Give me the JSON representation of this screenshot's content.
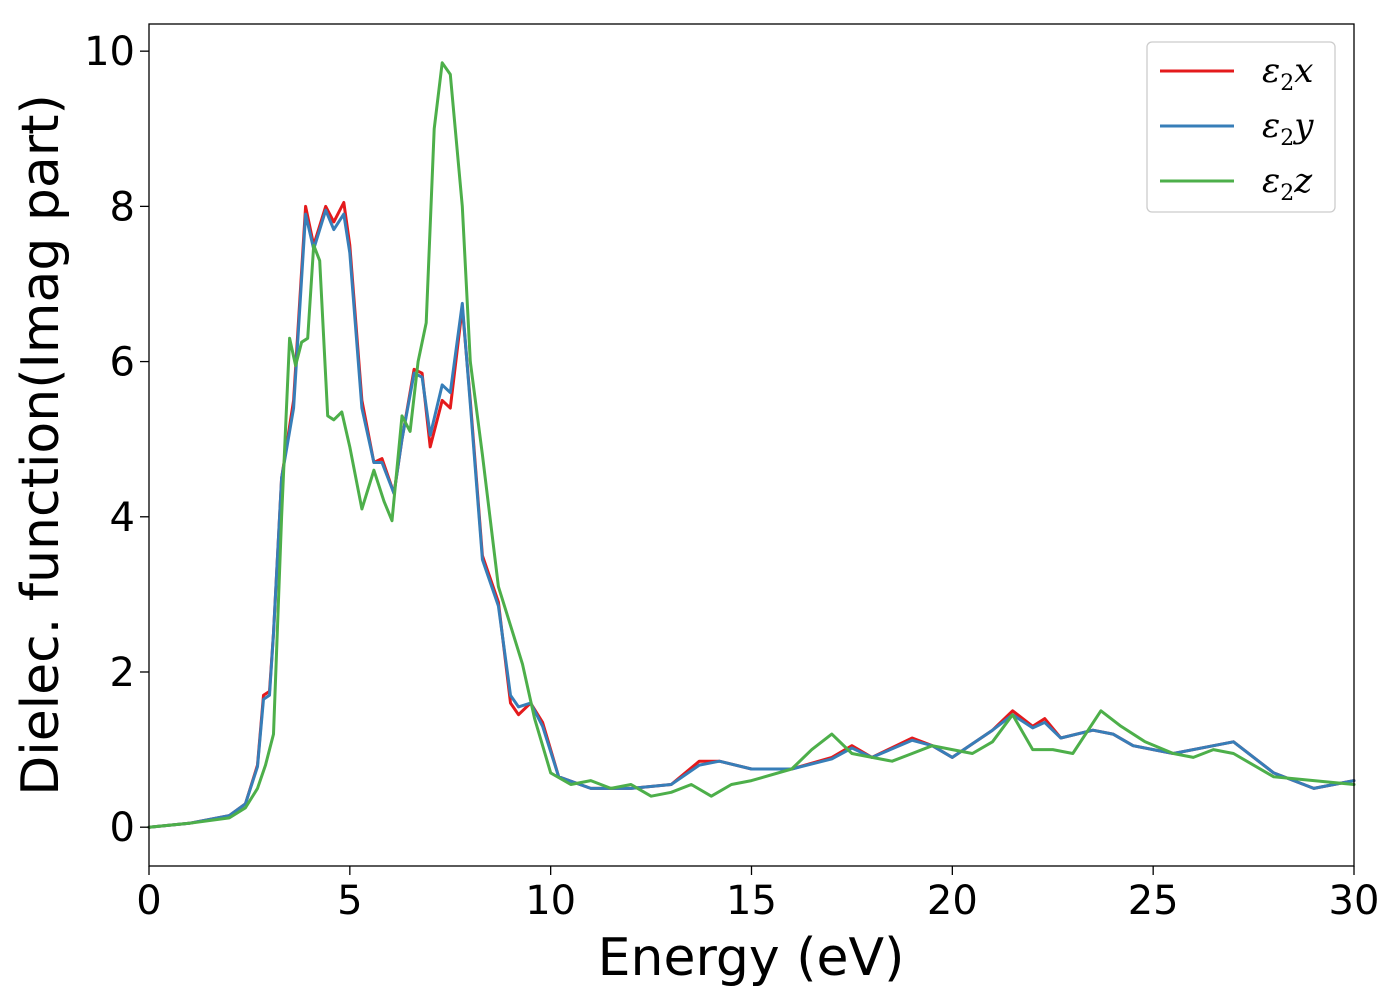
{
  "chart_data": {
    "type": "line",
    "xlabel": "Energy (eV)",
    "ylabel": "Dielec. function(Imag part)",
    "xlim": [
      0,
      30
    ],
    "ylim": [
      -0.5,
      10.35
    ],
    "xticks": [
      0,
      5,
      10,
      15,
      20,
      25,
      30
    ],
    "yticks": [
      0,
      2,
      4,
      6,
      8,
      10
    ],
    "grid": false,
    "legend_position": "top-right",
    "series": [
      {
        "name": "ε2x",
        "legend_base": "ε",
        "legend_sub": "2",
        "legend_var": "x",
        "color": "#e41a1c",
        "x": [
          0,
          1,
          2,
          2.4,
          2.7,
          2.85,
          3.0,
          3.1,
          3.3,
          3.6,
          3.9,
          4.1,
          4.4,
          4.6,
          4.85,
          5.0,
          5.3,
          5.6,
          5.8,
          6.1,
          6.3,
          6.6,
          6.8,
          7.0,
          7.3,
          7.5,
          7.8,
          8.0,
          8.3,
          8.7,
          9.0,
          9.2,
          9.5,
          9.8,
          10.2,
          11,
          12,
          13,
          13.7,
          14.2,
          15,
          16,
          17,
          17.5,
          18,
          19,
          19.5,
          20,
          21,
          21.5,
          22,
          22.3,
          22.7,
          23.5,
          24,
          24.5,
          25,
          25.5,
          26.5,
          27,
          28,
          29,
          30
        ],
        "y": [
          0,
          0.05,
          0.15,
          0.3,
          0.8,
          1.7,
          1.75,
          2.5,
          4.5,
          5.5,
          8.0,
          7.5,
          8.0,
          7.8,
          8.05,
          7.5,
          5.5,
          4.7,
          4.75,
          4.3,
          5.0,
          5.9,
          5.85,
          4.9,
          5.5,
          5.4,
          6.7,
          5.5,
          3.5,
          2.9,
          1.6,
          1.45,
          1.6,
          1.35,
          0.65,
          0.5,
          0.5,
          0.55,
          0.85,
          0.85,
          0.75,
          0.75,
          0.9,
          1.05,
          0.9,
          1.15,
          1.05,
          0.9,
          1.25,
          1.5,
          1.3,
          1.4,
          1.15,
          1.25,
          1.2,
          1.05,
          1.0,
          0.95,
          1.05,
          1.1,
          0.7,
          0.5,
          0.6
        ]
      },
      {
        "name": "ε2y",
        "legend_base": "ε",
        "legend_sub": "2",
        "legend_var": "y",
        "color": "#377eb8",
        "x": [
          0,
          1,
          2,
          2.4,
          2.7,
          2.85,
          3.0,
          3.1,
          3.3,
          3.6,
          3.9,
          4.1,
          4.4,
          4.6,
          4.85,
          5.0,
          5.3,
          5.6,
          5.8,
          6.1,
          6.3,
          6.6,
          6.8,
          7.0,
          7.3,
          7.5,
          7.8,
          8.0,
          8.3,
          8.7,
          9.0,
          9.2,
          9.5,
          9.8,
          10.2,
          11,
          12,
          13,
          13.7,
          14.2,
          15,
          16,
          17,
          17.5,
          18,
          19,
          19.5,
          20,
          21,
          21.5,
          22,
          22.3,
          22.7,
          23.5,
          24,
          24.5,
          25,
          25.5,
          26.5,
          27,
          28,
          29,
          30
        ],
        "y": [
          0,
          0.05,
          0.15,
          0.3,
          0.78,
          1.65,
          1.7,
          2.5,
          4.5,
          5.4,
          7.9,
          7.45,
          7.95,
          7.7,
          7.9,
          7.4,
          5.4,
          4.7,
          4.7,
          4.3,
          5.0,
          5.85,
          5.8,
          5.05,
          5.7,
          5.6,
          6.75,
          5.45,
          3.45,
          2.85,
          1.7,
          1.55,
          1.6,
          1.3,
          0.65,
          0.5,
          0.5,
          0.55,
          0.8,
          0.85,
          0.75,
          0.75,
          0.88,
          1.02,
          0.9,
          1.12,
          1.05,
          0.9,
          1.25,
          1.45,
          1.28,
          1.35,
          1.15,
          1.25,
          1.2,
          1.05,
          1.0,
          0.95,
          1.05,
          1.1,
          0.7,
          0.5,
          0.6
        ]
      },
      {
        "name": "ε2z",
        "legend_base": "ε",
        "legend_sub": "2",
        "legend_var": "z",
        "color": "#4daf4a",
        "x": [
          0,
          1,
          2,
          2.4,
          2.7,
          2.9,
          3.1,
          3.3,
          3.5,
          3.65,
          3.8,
          3.95,
          4.1,
          4.25,
          4.45,
          4.6,
          4.8,
          5.0,
          5.3,
          5.6,
          5.85,
          6.05,
          6.3,
          6.5,
          6.7,
          6.9,
          7.1,
          7.3,
          7.5,
          7.8,
          8.0,
          8.3,
          8.7,
          9.0,
          9.3,
          9.6,
          10.0,
          10.5,
          11,
          11.5,
          12,
          12.5,
          13,
          13.5,
          14,
          14.5,
          15,
          16,
          16.5,
          17,
          17.5,
          18,
          18.5,
          19,
          19.5,
          20,
          20.5,
          21,
          21.5,
          22,
          22.5,
          23,
          23.7,
          24.2,
          24.8,
          25.5,
          26,
          26.5,
          27,
          28,
          29,
          30
        ],
        "y": [
          0,
          0.05,
          0.12,
          0.25,
          0.5,
          0.8,
          1.2,
          4.0,
          6.3,
          5.95,
          6.25,
          6.3,
          7.5,
          7.3,
          5.3,
          5.25,
          5.35,
          4.9,
          4.1,
          4.6,
          4.2,
          3.95,
          5.3,
          5.1,
          6.0,
          6.5,
          9.0,
          9.85,
          9.7,
          8.0,
          6.0,
          4.8,
          3.1,
          2.6,
          2.1,
          1.4,
          0.7,
          0.55,
          0.6,
          0.5,
          0.55,
          0.4,
          0.45,
          0.55,
          0.4,
          0.55,
          0.6,
          0.75,
          1.0,
          1.2,
          0.95,
          0.9,
          0.85,
          0.95,
          1.05,
          1.0,
          0.95,
          1.1,
          1.45,
          1.0,
          1.0,
          0.95,
          1.5,
          1.3,
          1.1,
          0.95,
          0.9,
          1.0,
          0.95,
          0.65,
          0.6,
          0.55
        ]
      }
    ]
  }
}
